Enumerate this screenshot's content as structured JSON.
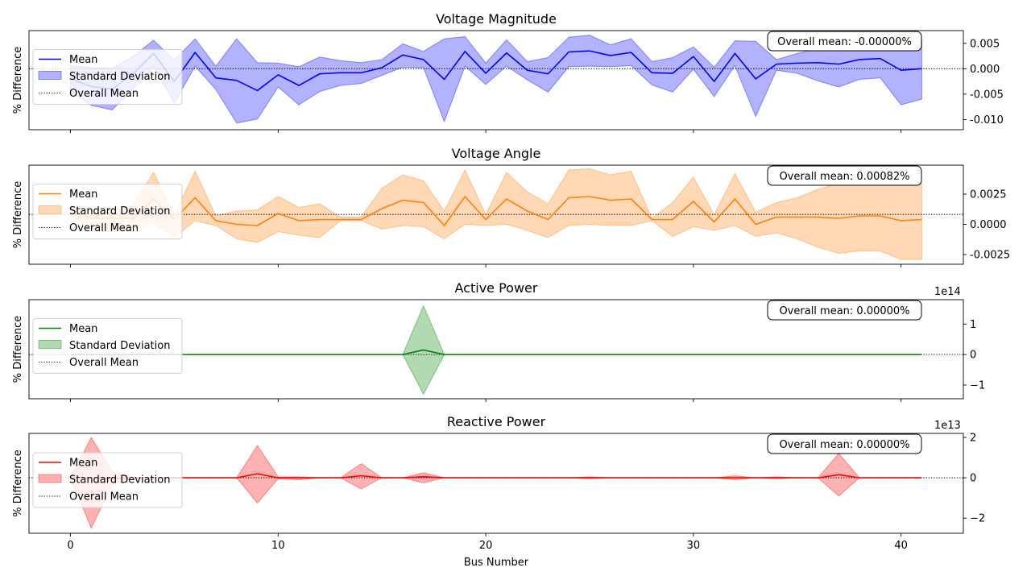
{
  "figure": {
    "xlabel": "Bus Number",
    "ylabel": "% Difference"
  },
  "legend": {
    "mean": "Mean",
    "std": "Standard Deviation",
    "overall": "Overall Mean",
    "placement": "center-left"
  },
  "colors": {
    "voltage_magnitude": "#0000ff",
    "voltage_angle": "#ff7f0e",
    "active_power": "#008000",
    "reactive_power": "#ff0000",
    "overall_mean_line": "#000000"
  },
  "chart_data": [
    {
      "type": "line",
      "title": "Voltage Magnitude",
      "annotation": "Overall mean: -0.00000%",
      "ylabel": "% Difference",
      "xlabel": "",
      "xlim": [
        -2,
        43
      ],
      "ylim": [
        -0.012,
        0.0075
      ],
      "xticks": [
        0,
        10,
        20,
        30,
        40
      ],
      "xtick_labels": [],
      "yticks": [
        0.005,
        0.0,
        -0.005,
        -0.01
      ],
      "ytick_labels": [
        "0.005",
        "0.000",
        "-0.005",
        "-0.010"
      ],
      "overall_mean": 0,
      "x": [
        0,
        1,
        2,
        3,
        4,
        5,
        6,
        7,
        8,
        9,
        10,
        11,
        12,
        13,
        14,
        15,
        16,
        17,
        18,
        19,
        20,
        21,
        22,
        23,
        24,
        25,
        26,
        27,
        28,
        29,
        30,
        31,
        32,
        33,
        34,
        35,
        36,
        37,
        38,
        39,
        40,
        41
      ],
      "series": [
        {
          "name": "Mean",
          "values": [
            -0.002,
            -0.0035,
            -0.004,
            -0.001,
            0.003,
            -0.0025,
            0.0032,
            -0.0018,
            -0.0023,
            -0.0043,
            -0.0012,
            -0.0033,
            -0.001,
            -0.0008,
            -0.0008,
            0.0002,
            0.0027,
            0.0018,
            -0.0021,
            0.0034,
            -0.0009,
            0.0031,
            -0.0003,
            -0.001,
            0.0033,
            0.0035,
            0.0026,
            0.0032,
            -0.0008,
            -0.0009,
            0.0024,
            -0.0025,
            0.003,
            -0.002,
            0.0009,
            0.0011,
            0.0012,
            0.0009,
            0.0018,
            0.002,
            -0.0003,
            0.0
          ]
        },
        {
          "name": "Standard Deviation",
          "upper": [
            0.0006,
            0.0002,
            0.0001,
            0.0024,
            0.0056,
            0.0017,
            0.0059,
            0.0005,
            0.0059,
            0.0012,
            0.0011,
            0.0004,
            0.0023,
            0.0016,
            0.0012,
            0.0018,
            0.0049,
            0.0034,
            0.0059,
            0.0063,
            0.0011,
            0.0057,
            0.0014,
            0.0022,
            0.0062,
            0.0066,
            0.0047,
            0.0059,
            0.0014,
            0.0022,
            0.0043,
            0.0003,
            0.0055,
            0.0054,
            0.0018,
            0.003,
            0.004,
            0.005,
            0.006,
            0.006,
            0.0048,
            0.0055
          ],
          "lower": [
            -0.0045,
            -0.0072,
            -0.0081,
            -0.0041,
            0.0004,
            -0.0068,
            0.0005,
            -0.0041,
            -0.0107,
            -0.0099,
            -0.0036,
            -0.0071,
            -0.0045,
            -0.0033,
            -0.0029,
            -0.0013,
            0.0003,
            0.0002,
            -0.0104,
            0.0005,
            -0.0031,
            0.0005,
            -0.0022,
            -0.0046,
            0.0004,
            0.0005,
            0.0004,
            0.0006,
            -0.0032,
            -0.0046,
            -0.0001,
            -0.0055,
            0.0006,
            -0.0094,
            -0.0003,
            -0.0009,
            -0.0024,
            -0.0036,
            -0.0021,
            -0.0018,
            -0.0071,
            -0.006
          ]
        }
      ]
    },
    {
      "type": "line",
      "title": "Voltage Angle",
      "annotation": "Overall mean: 0.00082%",
      "ylabel": "% Difference",
      "xlabel": "",
      "xlim": [
        -2,
        43
      ],
      "ylim": [
        -0.0033,
        0.0049
      ],
      "xticks": [
        0,
        10,
        20,
        30,
        40
      ],
      "xtick_labels": [],
      "yticks": [
        0.0025,
        0.0,
        -0.0025
      ],
      "ytick_labels": [
        "0.0025",
        "0.0000",
        "-0.0025"
      ],
      "overall_mean": 0.00082,
      "x": [
        0,
        1,
        2,
        3,
        4,
        5,
        6,
        7,
        8,
        9,
        10,
        11,
        12,
        13,
        14,
        15,
        16,
        17,
        18,
        19,
        20,
        21,
        22,
        23,
        24,
        25,
        26,
        27,
        28,
        29,
        30,
        31,
        32,
        33,
        34,
        35,
        36,
        37,
        38,
        39,
        40,
        41
      ],
      "series": [
        {
          "name": "Mean",
          "values": [
            0.0013,
            0.0005,
            0.0005,
            0.0005,
            0.0021,
            0.0004,
            0.0022,
            0.0003,
            0.0,
            -0.0001,
            0.0009,
            0.0003,
            0.0004,
            0.0004,
            0.0004,
            0.0013,
            0.002,
            0.0018,
            -0.0001,
            0.0023,
            0.0004,
            0.0021,
            0.0011,
            0.0004,
            0.0022,
            0.0023,
            0.002,
            0.0021,
            0.0004,
            0.0004,
            0.0019,
            0.0002,
            0.0021,
            0.0,
            0.0006,
            0.0006,
            0.0006,
            0.0005,
            0.0007,
            0.0007,
            0.0003,
            0.0004
          ]
        },
        {
          "name": "Standard Deviation",
          "upper": [
            0.0017,
            0.0012,
            0.0013,
            0.0016,
            0.0043,
            0.0008,
            0.0044,
            0.0007,
            0.0011,
            0.0012,
            0.0023,
            0.0014,
            0.0017,
            0.0006,
            0.0006,
            0.003,
            0.0041,
            0.0036,
            0.0011,
            0.0045,
            0.0008,
            0.0043,
            0.0027,
            0.0017,
            0.0045,
            0.0046,
            0.0041,
            0.0044,
            0.0005,
            0.0018,
            0.0039,
            0.0008,
            0.0042,
            0.001,
            0.0018,
            0.0022,
            0.0029,
            0.0034,
            0.0034,
            0.0037,
            0.0035,
            0.0035
          ],
          "lower": [
            0.0009,
            -0.0004,
            -0.0005,
            -0.0005,
            0.0002,
            -0.0011,
            0.0003,
            -0.0001,
            -0.0012,
            -0.0015,
            -0.0006,
            -0.0009,
            -0.0011,
            0.0003,
            0.0003,
            -0.0004,
            -0.0001,
            -0.0002,
            -0.0012,
            0.0,
            -0.0001,
            0.0,
            -0.0005,
            -0.0011,
            -0.0001,
            0.0,
            -0.0001,
            -0.0001,
            0.0003,
            -0.001,
            -0.0002,
            -0.0005,
            -0.0001,
            -0.001,
            -0.0007,
            -0.0012,
            -0.0019,
            -0.0024,
            -0.0022,
            -0.0022,
            -0.0029,
            -0.0029
          ]
        }
      ]
    },
    {
      "type": "line",
      "title": "Active Power",
      "annotation": "Overall mean: 0.00000%",
      "offset_text": "1e14",
      "ylabel": "% Difference",
      "xlabel": "",
      "xlim": [
        -2,
        43
      ],
      "ylim": [
        -1.45,
        1.8
      ],
      "xticks": [
        0,
        10,
        20,
        30,
        40
      ],
      "xtick_labels": [],
      "yticks": [
        1,
        0,
        -1
      ],
      "ytick_labels": [
        "1",
        "0",
        "−1"
      ],
      "overall_mean": 0,
      "x": [
        0,
        1,
        2,
        3,
        4,
        5,
        6,
        7,
        8,
        9,
        10,
        11,
        12,
        13,
        14,
        15,
        16,
        17,
        18,
        19,
        20,
        21,
        22,
        23,
        24,
        25,
        26,
        27,
        28,
        29,
        30,
        31,
        32,
        33,
        34,
        35,
        36,
        37,
        38,
        39,
        40,
        41
      ],
      "series": [
        {
          "name": "Mean",
          "values": [
            0,
            0,
            0,
            0,
            0,
            0,
            0,
            0,
            0,
            0,
            0,
            0,
            0,
            0,
            0,
            0,
            0,
            0.15,
            0,
            0,
            0,
            0,
            0,
            0,
            0,
            0,
            0,
            0,
            0,
            0,
            0,
            0,
            0,
            0,
            0,
            0,
            0,
            0,
            0,
            0,
            0,
            0
          ]
        },
        {
          "name": "Standard Deviation",
          "upper": [
            0,
            0,
            0,
            0,
            0,
            0,
            0,
            0,
            0,
            0,
            0,
            0,
            0,
            0,
            0,
            0,
            0,
            1.6,
            0,
            0,
            0,
            0,
            0,
            0,
            0,
            0,
            0,
            0,
            0,
            0,
            0,
            0,
            0,
            0,
            0,
            0,
            0,
            0,
            0,
            0,
            0,
            0
          ],
          "lower": [
            0,
            0,
            0,
            0,
            0,
            0,
            0,
            0,
            0,
            0,
            0,
            0,
            0,
            0,
            0,
            0,
            0,
            -1.3,
            0,
            0,
            0,
            0,
            0,
            0,
            0,
            0,
            0,
            0,
            0,
            0,
            0,
            0,
            0,
            0,
            0,
            0,
            0,
            0,
            0,
            0,
            0,
            0
          ]
        }
      ]
    },
    {
      "type": "line",
      "title": "Reactive Power",
      "annotation": "Overall mean: 0.00000%",
      "offset_text": "1e13",
      "ylabel": "% Difference",
      "xlabel": "Bus Number",
      "xlim": [
        -2,
        43
      ],
      "ylim": [
        -2.75,
        2.2
      ],
      "xticks": [
        0,
        10,
        20,
        30,
        40
      ],
      "xtick_labels": [
        "0",
        "10",
        "20",
        "30",
        "40"
      ],
      "yticks": [
        2,
        0,
        -2
      ],
      "ytick_labels": [
        "2",
        "0",
        "−2"
      ],
      "overall_mean": 0,
      "x": [
        0,
        1,
        2,
        3,
        4,
        5,
        6,
        7,
        8,
        9,
        10,
        11,
        12,
        13,
        14,
        15,
        16,
        17,
        18,
        19,
        20,
        21,
        22,
        23,
        24,
        25,
        26,
        27,
        28,
        29,
        30,
        31,
        32,
        33,
        34,
        35,
        36,
        37,
        38,
        39,
        40,
        41
      ],
      "series": [
        {
          "name": "Mean",
          "values": [
            0,
            0,
            -0.05,
            0,
            0,
            0,
            0,
            0,
            0,
            0.2,
            0,
            0,
            0,
            0,
            0.1,
            0,
            0,
            0.05,
            0,
            0,
            0,
            0,
            0,
            0,
            0,
            0,
            0,
            0,
            0,
            0,
            0,
            0,
            0,
            0,
            0,
            0,
            0,
            0.15,
            0,
            0,
            0,
            0
          ]
        },
        {
          "name": "Standard Deviation",
          "upper": [
            0,
            2.0,
            0.3,
            0.05,
            0,
            0,
            0,
            0,
            0,
            1.6,
            0.05,
            0.05,
            0,
            0,
            0.7,
            0,
            0,
            0.25,
            0,
            0,
            0,
            0,
            0,
            0,
            0,
            0.05,
            0,
            0,
            0,
            0,
            0,
            0,
            0.1,
            0,
            0.05,
            0,
            0,
            1.2,
            0,
            0,
            0,
            0
          ],
          "lower": [
            0,
            -2.5,
            -0.35,
            -0.05,
            0,
            0,
            0,
            0,
            0,
            -1.25,
            -0.05,
            -0.1,
            0,
            0,
            -0.55,
            0,
            0,
            -0.25,
            0,
            0,
            0,
            0,
            0,
            0,
            0,
            -0.05,
            0,
            0,
            0,
            0,
            0,
            0,
            -0.1,
            0,
            -0.05,
            0,
            0,
            -0.9,
            0,
            0,
            0,
            0
          ]
        }
      ]
    }
  ]
}
